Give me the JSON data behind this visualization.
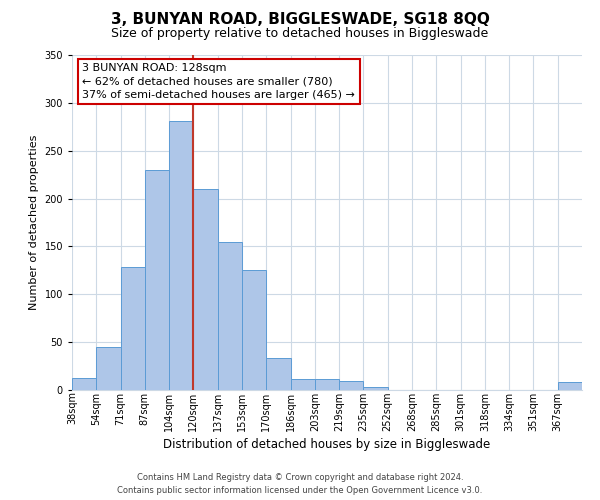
{
  "title": "3, BUNYAN ROAD, BIGGLESWADE, SG18 8QQ",
  "subtitle": "Size of property relative to detached houses in Biggleswade",
  "xlabel": "Distribution of detached houses by size in Biggleswade",
  "ylabel": "Number of detached properties",
  "bar_labels": [
    "38sqm",
    "54sqm",
    "71sqm",
    "87sqm",
    "104sqm",
    "120sqm",
    "137sqm",
    "153sqm",
    "170sqm",
    "186sqm",
    "203sqm",
    "219sqm",
    "235sqm",
    "252sqm",
    "268sqm",
    "285sqm",
    "301sqm",
    "318sqm",
    "334sqm",
    "351sqm",
    "367sqm"
  ],
  "bar_heights": [
    13,
    45,
    128,
    230,
    281,
    210,
    155,
    125,
    33,
    11,
    11,
    9,
    3,
    0,
    0,
    0,
    0,
    0,
    0,
    0,
    8
  ],
  "bar_color": "#aec6e8",
  "bar_edge_color": "#5b9bd5",
  "vline_x": 5.0,
  "vline_color": "#c0392b",
  "ylim": [
    0,
    350
  ],
  "yticks": [
    0,
    50,
    100,
    150,
    200,
    250,
    300,
    350
  ],
  "annotation_title": "3 BUNYAN ROAD: 128sqm",
  "annotation_line1": "← 62% of detached houses are smaller (780)",
  "annotation_line2": "37% of semi-detached houses are larger (465) →",
  "footer_line1": "Contains HM Land Registry data © Crown copyright and database right 2024.",
  "footer_line2": "Contains public sector information licensed under the Open Government Licence v3.0.",
  "bg_color": "#ffffff",
  "grid_color": "#cdd9e5",
  "title_fontsize": 11,
  "subtitle_fontsize": 9,
  "ylabel_fontsize": 8,
  "xlabel_fontsize": 8.5,
  "tick_fontsize": 7,
  "footer_fontsize": 6,
  "annot_fontsize": 8
}
